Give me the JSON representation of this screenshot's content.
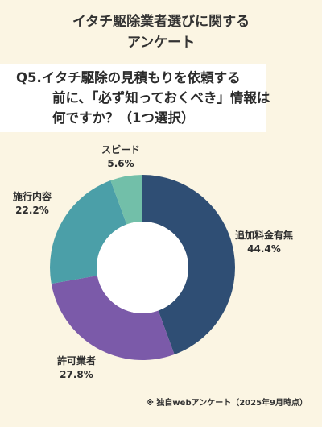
{
  "header": {
    "title_line1": "イタチ駆除業者選びに関する",
    "title_line2": "アンケート"
  },
  "question": {
    "line1": "Q5.イタチ駆除の見積もりを依頼する",
    "line2": "前に、「必ず知っておくべき」情報は",
    "line3": "何ですか？（1つ選択）"
  },
  "chart_data": {
    "type": "pie",
    "donut": true,
    "categories": [
      "追加料金有無",
      "許可業者",
      "施行内容",
      "スピード"
    ],
    "values": [
      44.4,
      27.8,
      22.2,
      5.6
    ],
    "value_labels": [
      "44.4%",
      "27.8%",
      "22.2%",
      "5.6%"
    ],
    "colors": [
      "#2f4e74",
      "#7b5aa9",
      "#4b9fa8",
      "#72bfa9"
    ],
    "start": "12 o'clock",
    "direction": "clockwise",
    "labels_outside": true
  },
  "footnote": "※ 独自webアンケート（2025年9月時点）"
}
